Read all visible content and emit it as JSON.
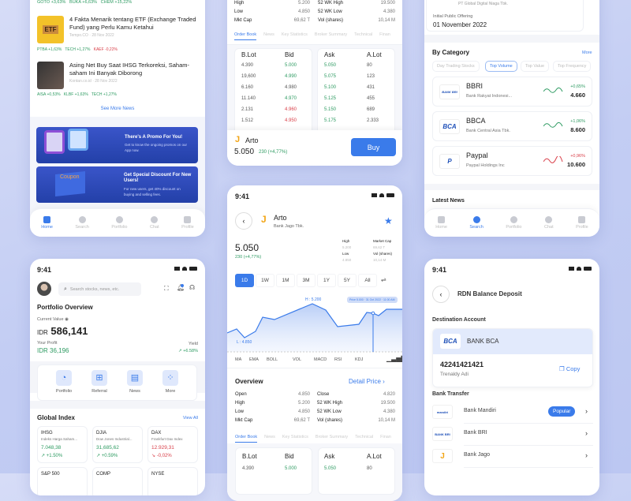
{
  "news_screen": {
    "ticker_strip": [
      "GOTO +3,63%",
      "BUKA +6,63%",
      "CHEM +15,22%"
    ],
    "articles": [
      {
        "title": "4 Fakta Menarik tentang ETF (Exchange Traded Fund) yang Perlu Kamu Ketahui",
        "source": "Tempo.CO",
        "date": "28 Nov 2022",
        "thumb": "ETF",
        "tags": [
          {
            "t": "PTBA +1,63%",
            "c": "g"
          },
          {
            "t": "TECH +1,27%",
            "c": "g"
          },
          {
            "t": "KAEF -0,22%",
            "c": "r"
          }
        ]
      },
      {
        "title": "Asing Net Buy Saat IHSG Terkoreksi, Saham-saham Ini Banyak Diborong",
        "source": "Kontan.co.id",
        "date": "28 Nov 2022",
        "tags": [
          {
            "t": "AISA +0,53%",
            "c": "g"
          },
          {
            "t": "KLBF +1,63%",
            "c": "g"
          },
          {
            "t": "TECH +1,27%",
            "c": "g"
          }
        ]
      }
    ],
    "see_more": "See More News",
    "promos": [
      {
        "title": "There's A Promo For You!",
        "desc": "Get to know the ongoing promos on our App now."
      },
      {
        "title": "Get Special Discount For New Users!",
        "desc": "For new users, get 40% discount on buying and selling fees.",
        "art": "Coupon"
      }
    ],
    "nav": [
      "Home",
      "Search",
      "Portfolio",
      "Chat",
      "Profile"
    ]
  },
  "orderbook_screen": {
    "stats": [
      [
        "High",
        "5.200",
        "52 WK High",
        "19.500"
      ],
      [
        "Low",
        "4.850",
        "52 WK Low",
        "4.380"
      ],
      [
        "Mkt Cap",
        "69,62 T",
        "Vol (shares)",
        "10,14 M"
      ]
    ],
    "tabs": [
      "Order Book",
      "News",
      "Key Statistics",
      "Broker Summary",
      "Technical",
      "Finan"
    ],
    "headers": [
      "B.Lot",
      "Bid",
      "Ask",
      "A.Lot"
    ],
    "rows": [
      [
        "4.390",
        "5.000",
        "g",
        "5.050",
        "80"
      ],
      [
        "19,600",
        "4.990",
        "g",
        "5.075",
        "123"
      ],
      [
        "6.160",
        "4.980",
        "n",
        "5.100",
        "431"
      ],
      [
        "11.140",
        "4.970",
        "g",
        "5.125",
        "455"
      ],
      [
        "2.131",
        "4.960",
        "r",
        "5.150",
        "689"
      ],
      [
        "1.512",
        "4.950",
        "r",
        "5.175",
        "2.333"
      ]
    ],
    "stock": "Arto",
    "price": "5.050",
    "change": "230 (+4,77%)",
    "buy": "Buy"
  },
  "search_screen": {
    "ipo_label": "Initial Public Offering",
    "ipo_date": "01 November 2022",
    "ipo_company": "PT Global Digital Niaga Tbk.",
    "category_title": "By Category",
    "more": "More",
    "chips": [
      "Day Trading Stocks",
      "Top Volume",
      "Top Value",
      "Top Frequency"
    ],
    "stocks": [
      {
        "code": "BBRI",
        "name": "Bank Rakyat Indonesi...",
        "change": "+0,65%",
        "price": "4.660",
        "c": "g",
        "logo": "BANK BRI"
      },
      {
        "code": "BBCA",
        "name": "Bank Central Asia Tbk.",
        "change": "+1,06%",
        "price": "8.600",
        "c": "g",
        "logo": "BCA"
      },
      {
        "code": "Paypal",
        "name": "Paypal Holdings Inc",
        "change": "+0,96%",
        "price": "10.600",
        "c": "r",
        "logo": "P"
      }
    ],
    "latest_news": "Latest News",
    "nav": [
      "Home",
      "Search",
      "Portfolio",
      "Chat",
      "Profile"
    ]
  },
  "home_screen": {
    "time": "9:41",
    "search_placeholder": "Search stocks, news, etc.",
    "title": "Portfolio Overview",
    "current_value_label": "Current Value",
    "currency": "IDR",
    "value": "586,141",
    "profit_label": "Your Profit",
    "profit": "IDR 36,196",
    "yield_label": "Yield",
    "yield": "+6.58%",
    "actions": [
      "Portfolio",
      "Referral",
      "News",
      "More"
    ],
    "global_title": "Global Index",
    "view_all": "View All",
    "indices": [
      {
        "code": "IHSG",
        "name": "Indeks Harga Saham...",
        "value": "7.048,38",
        "change": "+1.50%",
        "c": "g"
      },
      {
        "code": "DJIA",
        "name": "Dow Jones Industrial...",
        "value": "31,685,62",
        "change": "+0.59%",
        "c": "g"
      },
      {
        "code": "DAX",
        "name": "Frankfurt Dax Index",
        "value": "12.929,31",
        "change": "-0,02%",
        "c": "r"
      }
    ],
    "indices_next": [
      "S&P 500",
      "COMP",
      "NYSE"
    ]
  },
  "detail_screen": {
    "time": "9:41",
    "stock": "Arto",
    "company": "Bank Jago Tbk.",
    "price": "5.050",
    "change": "230 (+4,77%)",
    "mini": [
      [
        "High",
        "5.200",
        "Market Cap",
        "69,62 T"
      ],
      [
        "Low",
        "4.850",
        "Vol (shares)",
        "10,14 M"
      ]
    ],
    "ranges": [
      "1D",
      "1W",
      "1M",
      "3M",
      "1Y",
      "5Y",
      "All"
    ],
    "chart_high": "H : 5.200",
    "chart_low": "L : 4.850",
    "tooltip": "Price 5.000 · 31 Oct 2022 · 11:00 AM",
    "indicators": [
      "MA",
      "EMA",
      "BOLL",
      "VOL",
      "MACD",
      "RSI",
      "KDJ"
    ],
    "overview": "Overview",
    "detail_price": "Detail Price",
    "stats": [
      [
        "Open",
        "4.850",
        "Close",
        "4.820"
      ],
      [
        "High",
        "5.200",
        "52 WK High",
        "19.500"
      ],
      [
        "Low",
        "4.850",
        "52 WK Low",
        "4.380"
      ],
      [
        "Mkt Cap",
        "69,62 T",
        "Vol (shares)",
        "10,14 M"
      ]
    ],
    "tabs": [
      "Order Book",
      "News",
      "Key Statistics",
      "Broker Summary",
      "Technical",
      "Finan"
    ],
    "headers": [
      "B.Lot",
      "Bid",
      "Ask",
      "A.Lot"
    ],
    "row": [
      "4.390",
      "5.000",
      "5.050",
      "80"
    ]
  },
  "deposit_screen": {
    "time": "9:41",
    "title": "RDN Balance Deposit",
    "dest_label": "Destination Account",
    "bank": "BANK BCA",
    "bank_logo": "BCA",
    "account": "42241421421",
    "holder": "Trenaldy Adi",
    "copy": "Copy",
    "transfer_label": "Bank Transfer",
    "banks": [
      {
        "name": "Bank Mandiri",
        "logo": "mandiri",
        "badge": "Popular"
      },
      {
        "name": "Bank BRI",
        "logo": "BANK BRI"
      },
      {
        "name": "Bank Jago",
        "logo": "J"
      }
    ]
  },
  "colors": {
    "accent": "#3a7bea",
    "up": "#2e9b62",
    "down": "#d9404a",
    "jago": "#f2a516"
  }
}
